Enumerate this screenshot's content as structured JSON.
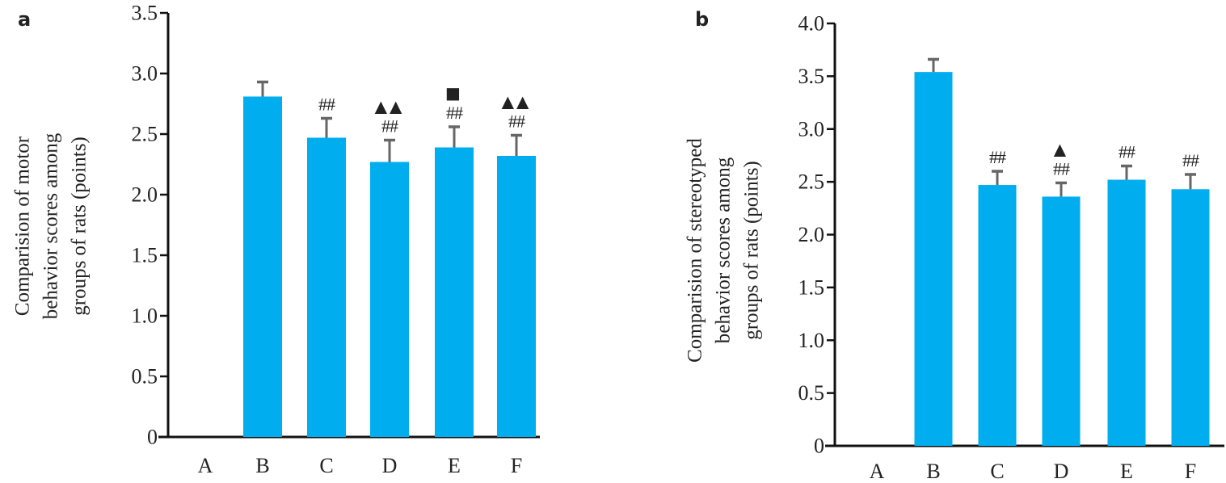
{
  "figure": {
    "panels": [
      "a",
      "b"
    ]
  },
  "chart_data": [
    {
      "type": "bar",
      "panel": "a",
      "title": "",
      "xlabel": "",
      "ylabel_lines": [
        "Comparision of motor",
        "behavior scores among",
        "groups of rats (points)"
      ],
      "ylabel": "Comparision of motor behavior scores among groups of rats (points)",
      "categories": [
        "A",
        "B",
        "C",
        "D",
        "E",
        "F"
      ],
      "values": [
        0,
        2.81,
        2.47,
        2.27,
        2.39,
        2.32
      ],
      "error_upper": [
        0,
        0.12,
        0.16,
        0.18,
        0.17,
        0.17
      ],
      "ylim": [
        0,
        3.5
      ],
      "yticks": [
        0,
        0.5,
        1.0,
        1.5,
        2.0,
        2.5,
        3.0,
        3.5
      ],
      "ytick_labels": [
        "0",
        "0.5",
        "1.0",
        "1.5",
        "2.0",
        "2.5",
        "3.0",
        "3.5"
      ],
      "annotations": [
        {
          "category": "C",
          "lines": [
            "##"
          ]
        },
        {
          "category": "D",
          "lines": [
            "▲▲",
            "##"
          ]
        },
        {
          "category": "E",
          "lines": [
            "■",
            "##"
          ]
        },
        {
          "category": "F",
          "lines": [
            "▲▲",
            "##"
          ]
        }
      ],
      "bar_color": "#00AEEF",
      "error_color": "#666666",
      "grid": false,
      "legend": "none"
    },
    {
      "type": "bar",
      "panel": "b",
      "title": "",
      "xlabel": "",
      "ylabel_lines": [
        "Comparision of stereotyped",
        "behavior scores among",
        "groups of rats (points)"
      ],
      "ylabel": "Comparision of stereotyped behavior scores among groups of rats (points)",
      "categories": [
        "A",
        "B",
        "C",
        "D",
        "E",
        "F"
      ],
      "values": [
        0,
        3.54,
        2.47,
        2.36,
        2.52,
        2.43
      ],
      "error_upper": [
        0,
        0.12,
        0.13,
        0.13,
        0.13,
        0.14
      ],
      "ylim": [
        0,
        4.0
      ],
      "yticks": [
        0,
        0.5,
        1.0,
        1.5,
        2.0,
        2.5,
        3.0,
        3.5,
        4.0
      ],
      "ytick_labels": [
        "0",
        "0.5",
        "1.0",
        "1.5",
        "2.0",
        "2.5",
        "3.0",
        "3.5",
        "4.0"
      ],
      "annotations": [
        {
          "category": "C",
          "lines": [
            "##"
          ]
        },
        {
          "category": "D",
          "lines": [
            "▲",
            "##"
          ]
        },
        {
          "category": "E",
          "lines": [
            "##"
          ]
        },
        {
          "category": "F",
          "lines": [
            "##"
          ]
        }
      ],
      "bar_color": "#00AEEF",
      "error_color": "#666666",
      "grid": false,
      "legend": "none"
    }
  ]
}
